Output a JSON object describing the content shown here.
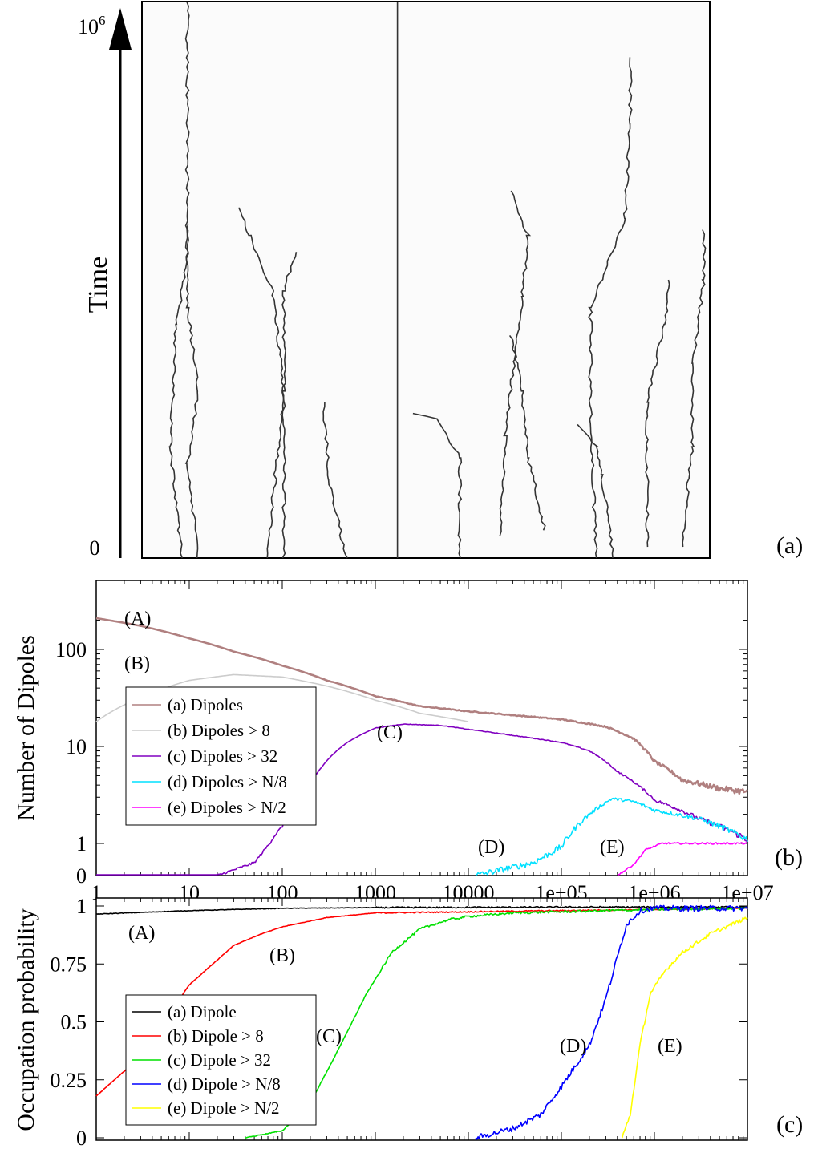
{
  "chart_data": [
    {
      "type": "spacetime",
      "panel_label": "(a)",
      "ylabel": "Time",
      "y_ticks": [
        "0",
        "10^6"
      ],
      "y_tick_base": "10",
      "y_tick_exp": "6",
      "trajectories": [
        {
          "points": [
            [
              0.07,
              0.0
            ],
            [
              0.05,
              0.2
            ],
            [
              0.06,
              0.42
            ],
            [
              0.08,
              0.53
            ],
            [
              0.08,
              1.0
            ]
          ]
        },
        {
          "points": [
            [
              0.1,
              0.0
            ],
            [
              0.08,
              0.17
            ],
            [
              0.1,
              0.3
            ],
            [
              0.08,
              0.45
            ],
            [
              0.08,
              0.6
            ]
          ]
        },
        {
          "points": [
            [
              0.22,
              0.0
            ],
            [
              0.25,
              0.3
            ],
            [
              0.23,
              0.48
            ],
            [
              0.19,
              0.58
            ],
            [
              0.17,
              0.63
            ]
          ]
        },
        {
          "points": [
            [
              0.25,
              0.0
            ],
            [
              0.25,
              0.48
            ],
            [
              0.27,
              0.55
            ]
          ]
        },
        {
          "points": [
            [
              0.36,
              0.0
            ],
            [
              0.33,
              0.14
            ],
            [
              0.32,
              0.28
            ]
          ]
        },
        {
          "points": [
            [
              0.45,
              0.0
            ],
            [
              0.45,
              1.0
            ]
          ]
        },
        {
          "points": [
            [
              0.56,
              0.0
            ],
            [
              0.56,
              0.18
            ],
            [
              0.52,
              0.25
            ],
            [
              0.48,
              0.26
            ]
          ]
        },
        {
          "points": [
            [
              0.63,
              0.04
            ],
            [
              0.64,
              0.22
            ],
            [
              0.67,
              0.47
            ],
            [
              0.68,
              0.58
            ],
            [
              0.65,
              0.66
            ]
          ]
        },
        {
          "points": [
            [
              0.71,
              0.05
            ],
            [
              0.68,
              0.18
            ],
            [
              0.67,
              0.3
            ],
            [
              0.65,
              0.4
            ]
          ]
        },
        {
          "points": [
            [
              0.8,
              0.0
            ],
            [
              0.79,
              0.25
            ],
            [
              0.79,
              0.45
            ],
            [
              0.85,
              0.61
            ],
            [
              0.86,
              0.78
            ],
            [
              0.86,
              0.9
            ]
          ]
        },
        {
          "points": [
            [
              0.83,
              0.0
            ],
            [
              0.81,
              0.15
            ],
            [
              0.8,
              0.2
            ],
            [
              0.77,
              0.24
            ]
          ]
        },
        {
          "points": [
            [
              0.95,
              0.02
            ],
            [
              0.97,
              0.2
            ],
            [
              0.97,
              0.35
            ],
            [
              0.99,
              0.5
            ],
            [
              0.99,
              0.59
            ]
          ]
        },
        {
          "points": [
            [
              0.89,
              0.02
            ],
            [
              0.89,
              0.28
            ],
            [
              0.92,
              0.42
            ],
            [
              0.93,
              0.5
            ]
          ]
        }
      ]
    },
    {
      "type": "line",
      "panel_label": "(b)",
      "ylabel": "Number of Dipoles",
      "x_scale": "log",
      "xlim": [
        1,
        10000000
      ],
      "x_ticks": [
        1,
        10,
        100,
        1000,
        10000,
        100000,
        1000000,
        10000000
      ],
      "x_tick_labels": [
        "1",
        "10",
        "100",
        "1000",
        "10000",
        "1e+05",
        "1e+06",
        "1e+07"
      ],
      "y_ticks": [
        0,
        1,
        10,
        100
      ],
      "y_tick_labels": [
        "0",
        "1",
        "10",
        "100"
      ],
      "ylim": [
        0,
        260
      ],
      "legend_position": "left",
      "series": [
        {
          "name": "(a) Dipoles",
          "color": "#b08080",
          "marker": "(A)",
          "noise": 0.3,
          "x": [
            1,
            3,
            10,
            30,
            100,
            300,
            1000,
            3000,
            10000,
            30000,
            100000,
            300000,
            600000,
            1000000,
            2000000,
            5000000,
            10000000
          ],
          "values": [
            210,
            175,
            130,
            95,
            68,
            48,
            33,
            26,
            23,
            21,
            19,
            16,
            12,
            7,
            4.5,
            3.7,
            3.4
          ]
        },
        {
          "name": "(b) Dipoles > 8",
          "color": "#cccccc",
          "marker": "(B)",
          "noise": 0,
          "x": [
            1,
            3,
            10,
            30,
            100,
            300,
            1000,
            3000,
            10000
          ],
          "values": [
            18,
            32,
            48,
            55,
            52,
            42,
            30,
            22,
            18
          ]
        },
        {
          "name": "(c) Dipoles > 32",
          "color": "#8000c0",
          "marker": "(C)",
          "noise": 0.12,
          "x": [
            1,
            20,
            50,
            100,
            200,
            500,
            1000,
            2000,
            5000,
            10000,
            30000,
            100000,
            200000,
            400000,
            1000000,
            3000000,
            10000000
          ],
          "values": [
            0,
            0,
            0.4,
            1.5,
            4,
            11,
            15.5,
            17,
            16.5,
            15,
            13,
            11,
            9,
            5.5,
            2.8,
            1.8,
            1.1
          ]
        },
        {
          "name": "(d) Dipoles > N/8",
          "color": "#00e0ff",
          "marker": "(D)",
          "noise": 0.12,
          "x": [
            12000,
            20000,
            50000,
            100000,
            200000,
            350000,
            600000,
            1000000,
            3000000,
            10000000
          ],
          "values": [
            0,
            0.15,
            0.4,
            0.9,
            2,
            2.9,
            2.7,
            2.2,
            1.8,
            1.1
          ]
        },
        {
          "name": "(e) Dipoles > N/2",
          "color": "#ff00ff",
          "marker": "(E)",
          "noise": 0.03,
          "x": [
            400000,
            600000,
            800000,
            1200000,
            2000000,
            10000000
          ],
          "values": [
            0,
            0.35,
            0.8,
            1,
            1,
            1
          ]
        }
      ]
    },
    {
      "type": "line",
      "panel_label": "(c)",
      "ylabel": "Occupation probability",
      "x_scale": "log",
      "xlim": [
        1,
        10000000
      ],
      "y_ticks": [
        0,
        0.25,
        0.5,
        0.75,
        1
      ],
      "y_tick_labels": [
        "0",
        "0.25",
        "0.5",
        "0.75",
        "1"
      ],
      "ylim": [
        0,
        1
      ],
      "legend_position": "left",
      "series": [
        {
          "name": "(a) Dipole",
          "color": "#000000",
          "marker": "(A)",
          "noise": 0.004,
          "x": [
            1,
            10,
            100,
            1000,
            10000,
            100000,
            1000000,
            10000000
          ],
          "values": [
            0.965,
            0.98,
            0.99,
            0.993,
            0.994,
            0.995,
            0.995,
            0.995
          ]
        },
        {
          "name": "(b) Dipole > 8",
          "color": "#ff0000",
          "marker": "(B)",
          "noise": 0.003,
          "x": [
            1,
            3,
            10,
            30,
            60,
            100,
            300,
            1000,
            10000,
            100000,
            1000000,
            10000000
          ],
          "values": [
            0.18,
            0.35,
            0.66,
            0.83,
            0.88,
            0.91,
            0.95,
            0.97,
            0.975,
            0.98,
            0.985,
            0.99
          ]
        },
        {
          "name": "(c) Dipole > 32",
          "color": "#00e000",
          "marker": "(C)",
          "noise": 0.006,
          "x": [
            40,
            100,
            200,
            400,
            800,
            1500,
            3000,
            6000,
            10000,
            30000,
            100000,
            1000000,
            10000000
          ],
          "values": [
            0,
            0.03,
            0.15,
            0.38,
            0.62,
            0.8,
            0.9,
            0.94,
            0.955,
            0.97,
            0.975,
            0.985,
            0.99
          ]
        },
        {
          "name": "(d) Dipole > N/8",
          "color": "#0000ff",
          "marker": "(D)",
          "noise": 0.015,
          "x": [
            12000,
            30000,
            60000,
            100000,
            200000,
            300000,
            500000,
            700000,
            1000000,
            3000000,
            10000000
          ],
          "values": [
            0,
            0.04,
            0.1,
            0.22,
            0.4,
            0.6,
            0.92,
            0.98,
            0.99,
            0.99,
            0.99
          ]
        },
        {
          "name": "(e) Dipole > N/2",
          "color": "#ffff00",
          "marker": "(E)",
          "noise": 0.01,
          "x": [
            450000,
            550000,
            700000,
            900000,
            1300000,
            2000000,
            4000000,
            10000000
          ],
          "values": [
            0,
            0.1,
            0.4,
            0.62,
            0.72,
            0.8,
            0.88,
            0.95
          ]
        }
      ]
    }
  ]
}
